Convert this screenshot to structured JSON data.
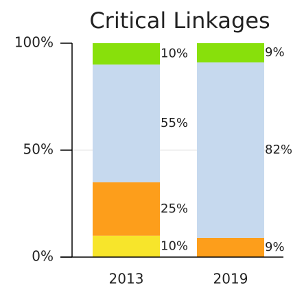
{
  "chart_data": {
    "type": "stacked_bar",
    "title": "Critical Linkages",
    "categories": [
      "2013",
      "2019"
    ],
    "series": [
      {
        "color": "#f7e52b",
        "values": [
          10,
          0
        ],
        "value_labels": [
          "10%",
          null
        ]
      },
      {
        "color": "#fd9e1b",
        "values": [
          25,
          9
        ],
        "value_labels": [
          "25%",
          "9%"
        ]
      },
      {
        "color": "#c6d9ee",
        "values": [
          55,
          82
        ],
        "value_labels": [
          "55%",
          "82%"
        ]
      },
      {
        "color": "#88e00b",
        "values": [
          10,
          9
        ],
        "value_labels": [
          "10%",
          "9%"
        ]
      }
    ],
    "ylim": [
      0,
      100
    ],
    "yticks": [
      {
        "value": 0,
        "label": "0%"
      },
      {
        "value": 50,
        "label": "50%"
      },
      {
        "value": 100,
        "label": "100%"
      }
    ],
    "grid": true
  }
}
